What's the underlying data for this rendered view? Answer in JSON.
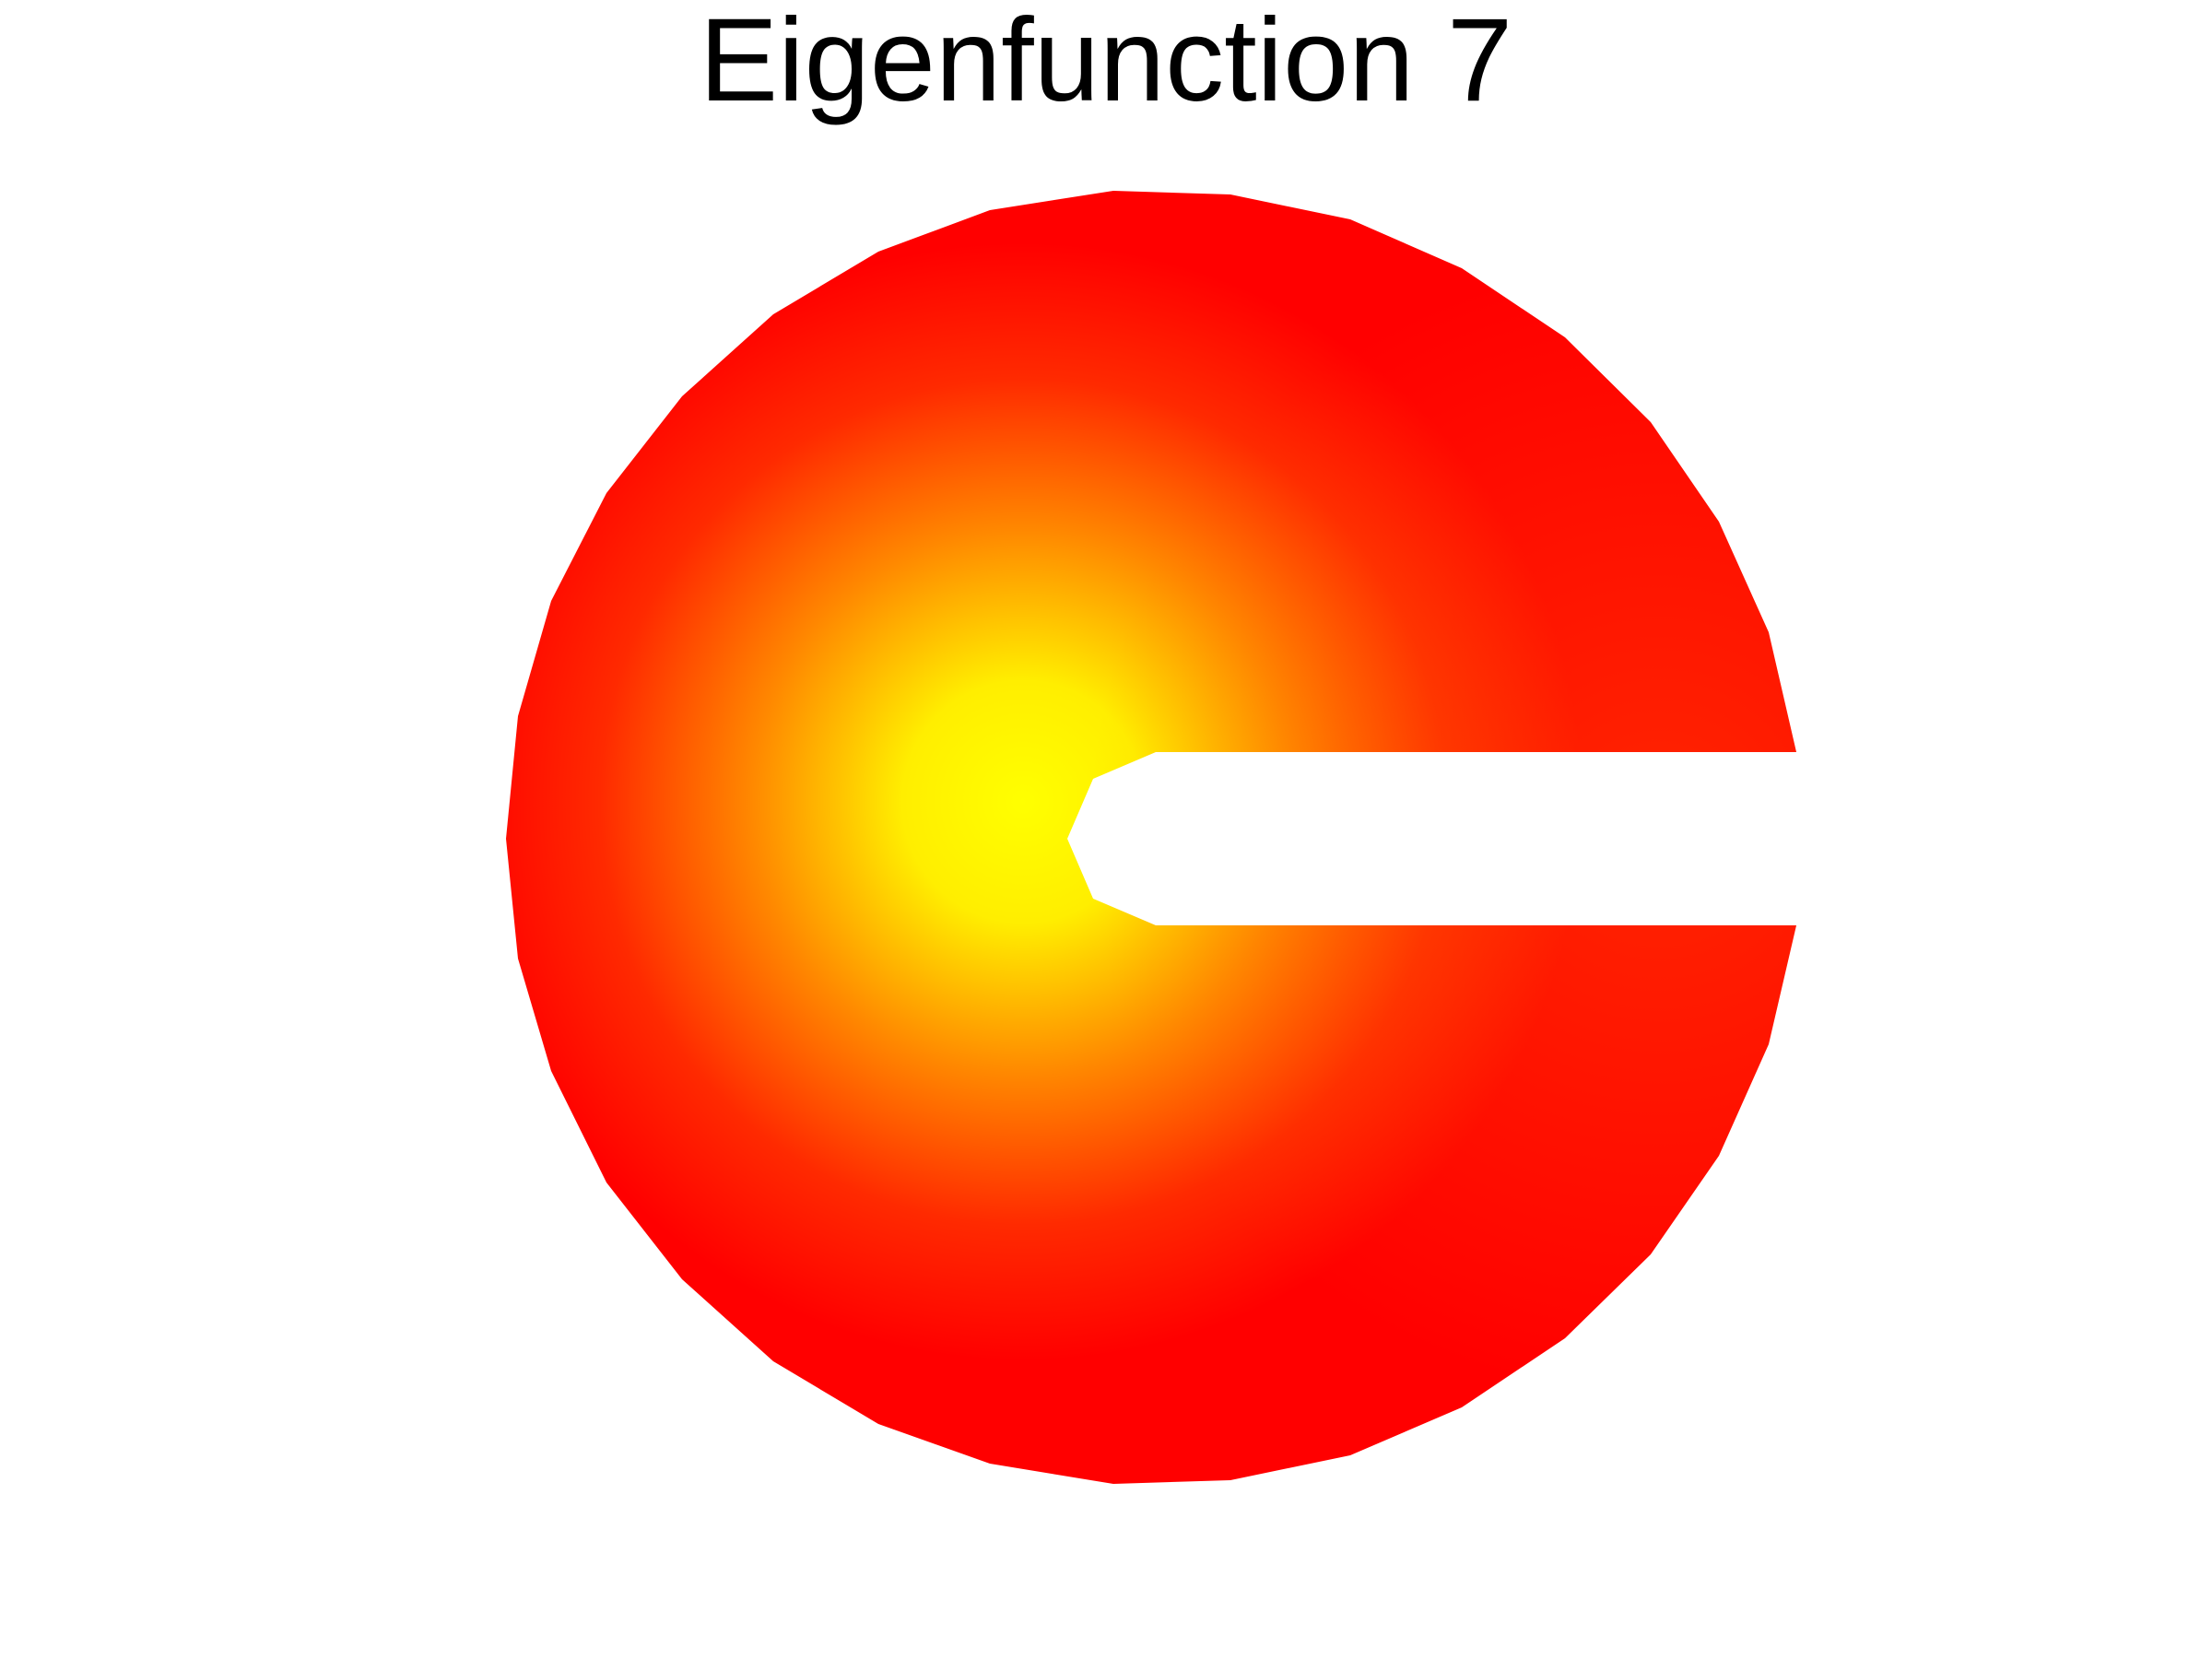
{
  "title": "Eigenfunction 7",
  "colors": {
    "background": "#ffffff",
    "high": "#ffff00",
    "mid": "#ff8000",
    "low": "#ff0000"
  }
}
